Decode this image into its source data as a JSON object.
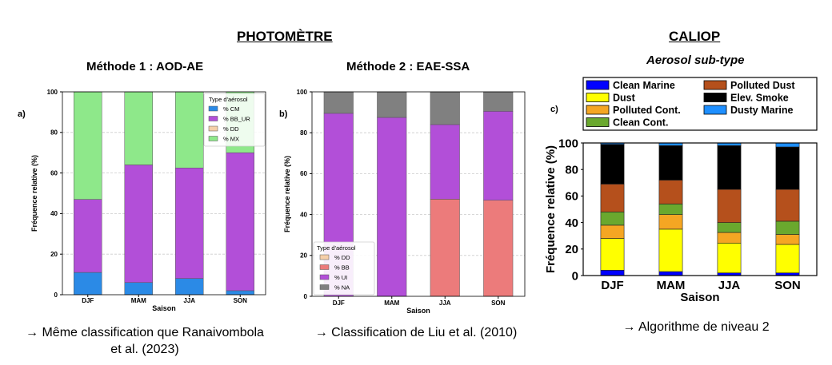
{
  "headers": {
    "photometre": "PHOTOMÈTRE",
    "caliop": "CALIOP"
  },
  "methods": {
    "m1": "Méthode 1 : AOD-AE",
    "m2": "Méthode 2 : EAE-SSA"
  },
  "caliop_subtitle": "Aerosol sub-type",
  "captions": {
    "c1_line1": "→ Même classification que Ranaivombola",
    "c1_line2": "et al. (2023)",
    "c2": "→ Classification de Liu et al. (2010)",
    "c3": "→ Algorithme de niveau 2"
  },
  "chart_data": [
    {
      "type": "bar",
      "panel": "a)",
      "stacked": true,
      "categories": [
        "DJF",
        "MAM",
        "JJA",
        "SON"
      ],
      "xlabel": "Saison",
      "ylabel": "Fréquence relative (%)",
      "ylim": [
        0,
        100
      ],
      "yticks": [
        "0",
        "20",
        "40",
        "60",
        "80",
        "100"
      ],
      "grid": true,
      "legend_title": "Type d'aérosol",
      "legend_position": "top-right",
      "series": [
        {
          "name": "% CM",
          "color": "#2b8ae6",
          "values": [
            11,
            6,
            8,
            2
          ]
        },
        {
          "name": "% BB_UR",
          "color": "#b24fd8",
          "values": [
            36,
            58,
            54.5,
            68
          ]
        },
        {
          "name": "% DD",
          "color": "#f5cfa8",
          "values": [
            0,
            0,
            0,
            0
          ]
        },
        {
          "name": "% MX",
          "color": "#8ee88a",
          "values": [
            53,
            36,
            37.5,
            30
          ]
        }
      ]
    },
    {
      "type": "bar",
      "panel": "b)",
      "stacked": true,
      "categories": [
        "DJF",
        "MAM",
        "JJA",
        "SON"
      ],
      "xlabel": "Saison",
      "ylabel": "Fréquence relative (%)",
      "ylim": [
        0,
        100
      ],
      "yticks": [
        "0",
        "20",
        "40",
        "60",
        "80",
        "100"
      ],
      "grid": true,
      "legend_title": "Type d'aérosol",
      "legend_position": "bottom-left",
      "series": [
        {
          "name": "% DD",
          "color": "#f5cfa8",
          "values": [
            0,
            0,
            0,
            0
          ]
        },
        {
          "name": "% BB",
          "color": "#ec7b7b",
          "values": [
            0,
            0,
            47.5,
            47
          ]
        },
        {
          "name": "% UI",
          "color": "#b24fd8",
          "values": [
            89.5,
            87.5,
            36.5,
            43.5
          ]
        },
        {
          "name": "% NA",
          "color": "#808080",
          "values": [
            10.5,
            12.5,
            16,
            9.5
          ]
        }
      ]
    },
    {
      "type": "bar",
      "panel": "c)",
      "stacked": true,
      "categories": [
        "DJF",
        "MAM",
        "JJA",
        "SON"
      ],
      "xlabel": "Saison",
      "ylabel": "Fréquence relative (%)",
      "ylim": [
        0,
        100
      ],
      "yticks": [
        "0",
        "20",
        "40",
        "60",
        "80",
        "100"
      ],
      "grid": false,
      "legend_position": "top",
      "series": [
        {
          "name": "Clean Marine",
          "color": "#0000ff",
          "values": [
            4,
            3,
            2,
            2
          ]
        },
        {
          "name": "Dust",
          "color": "#ffff00",
          "values": [
            24,
            32,
            22.5,
            21.5
          ]
        },
        {
          "name": "Polluted Cont.",
          "color": "#f5a623",
          "values": [
            10,
            11,
            8,
            7.5
          ]
        },
        {
          "name": "Clean Cont.",
          "color": "#6aa82e",
          "values": [
            10,
            8,
            7.5,
            10
          ]
        },
        {
          "name": "Polluted Dust",
          "color": "#b5501c",
          "values": [
            21,
            18,
            25,
            24
          ]
        },
        {
          "name": "Elev. Smoke",
          "color": "#000000",
          "values": [
            30,
            26,
            33,
            32
          ]
        },
        {
          "name": "Dusty Marine",
          "color": "#1e8fff",
          "values": [
            1,
            2,
            2,
            3
          ]
        }
      ],
      "legend_order": [
        "Clean Marine",
        "Dust",
        "Polluted Cont.",
        "Clean Cont.",
        "Polluted Dust",
        "Elev. Smoke",
        "Dusty Marine"
      ]
    }
  ]
}
